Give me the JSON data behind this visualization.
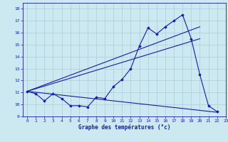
{
  "title": "Graphe des températures (°c)",
  "xlim": [
    -0.5,
    23
  ],
  "ylim": [
    9,
    18.5
  ],
  "yticks": [
    9,
    10,
    11,
    12,
    13,
    14,
    15,
    16,
    17,
    18
  ],
  "xticks": [
    0,
    1,
    2,
    3,
    4,
    5,
    6,
    7,
    8,
    9,
    10,
    11,
    12,
    13,
    14,
    15,
    16,
    17,
    18,
    19,
    20,
    21,
    22,
    23
  ],
  "bg_color": "#cce8f0",
  "grid_color": "#aaccd8",
  "line_color": "#1a1aaa",
  "line1": [
    11.1,
    10.9,
    10.3,
    10.9,
    10.5,
    9.9,
    9.9,
    9.8,
    10.6,
    10.5,
    11.5,
    12.1,
    13.0,
    14.9,
    16.4,
    15.9,
    16.5,
    17.0,
    17.5,
    15.5,
    12.5,
    9.9,
    9.4
  ],
  "line2_x": [
    0,
    20
  ],
  "line2_y": [
    11.1,
    16.5
  ],
  "line3_x": [
    0,
    20
  ],
  "line3_y": [
    11.1,
    15.5
  ],
  "line4_x": [
    0,
    22
  ],
  "line4_y": [
    11.1,
    9.35
  ]
}
